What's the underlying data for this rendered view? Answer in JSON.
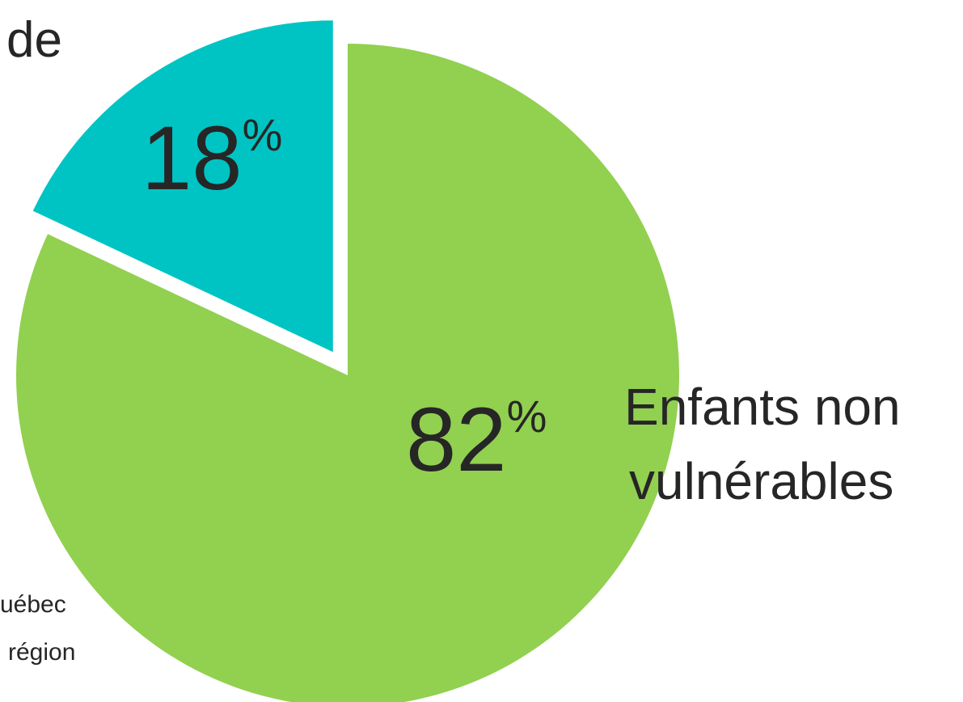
{
  "chart_data": {
    "type": "pie",
    "slices": [
      {
        "value": 18,
        "value_label": "18",
        "unit": "%",
        "color": "#00C4C4",
        "exploded": true
      },
      {
        "value": 82,
        "value_label": "82",
        "unit": "%",
        "color": "#92D050",
        "exploded": false
      }
    ],
    "annotations": {
      "top_left_fragment": "de",
      "category_label_line1": "Enfants non",
      "category_label_line2": "vulnérables",
      "footnote_line1": "uébec",
      "footnote_line2": "région"
    }
  }
}
